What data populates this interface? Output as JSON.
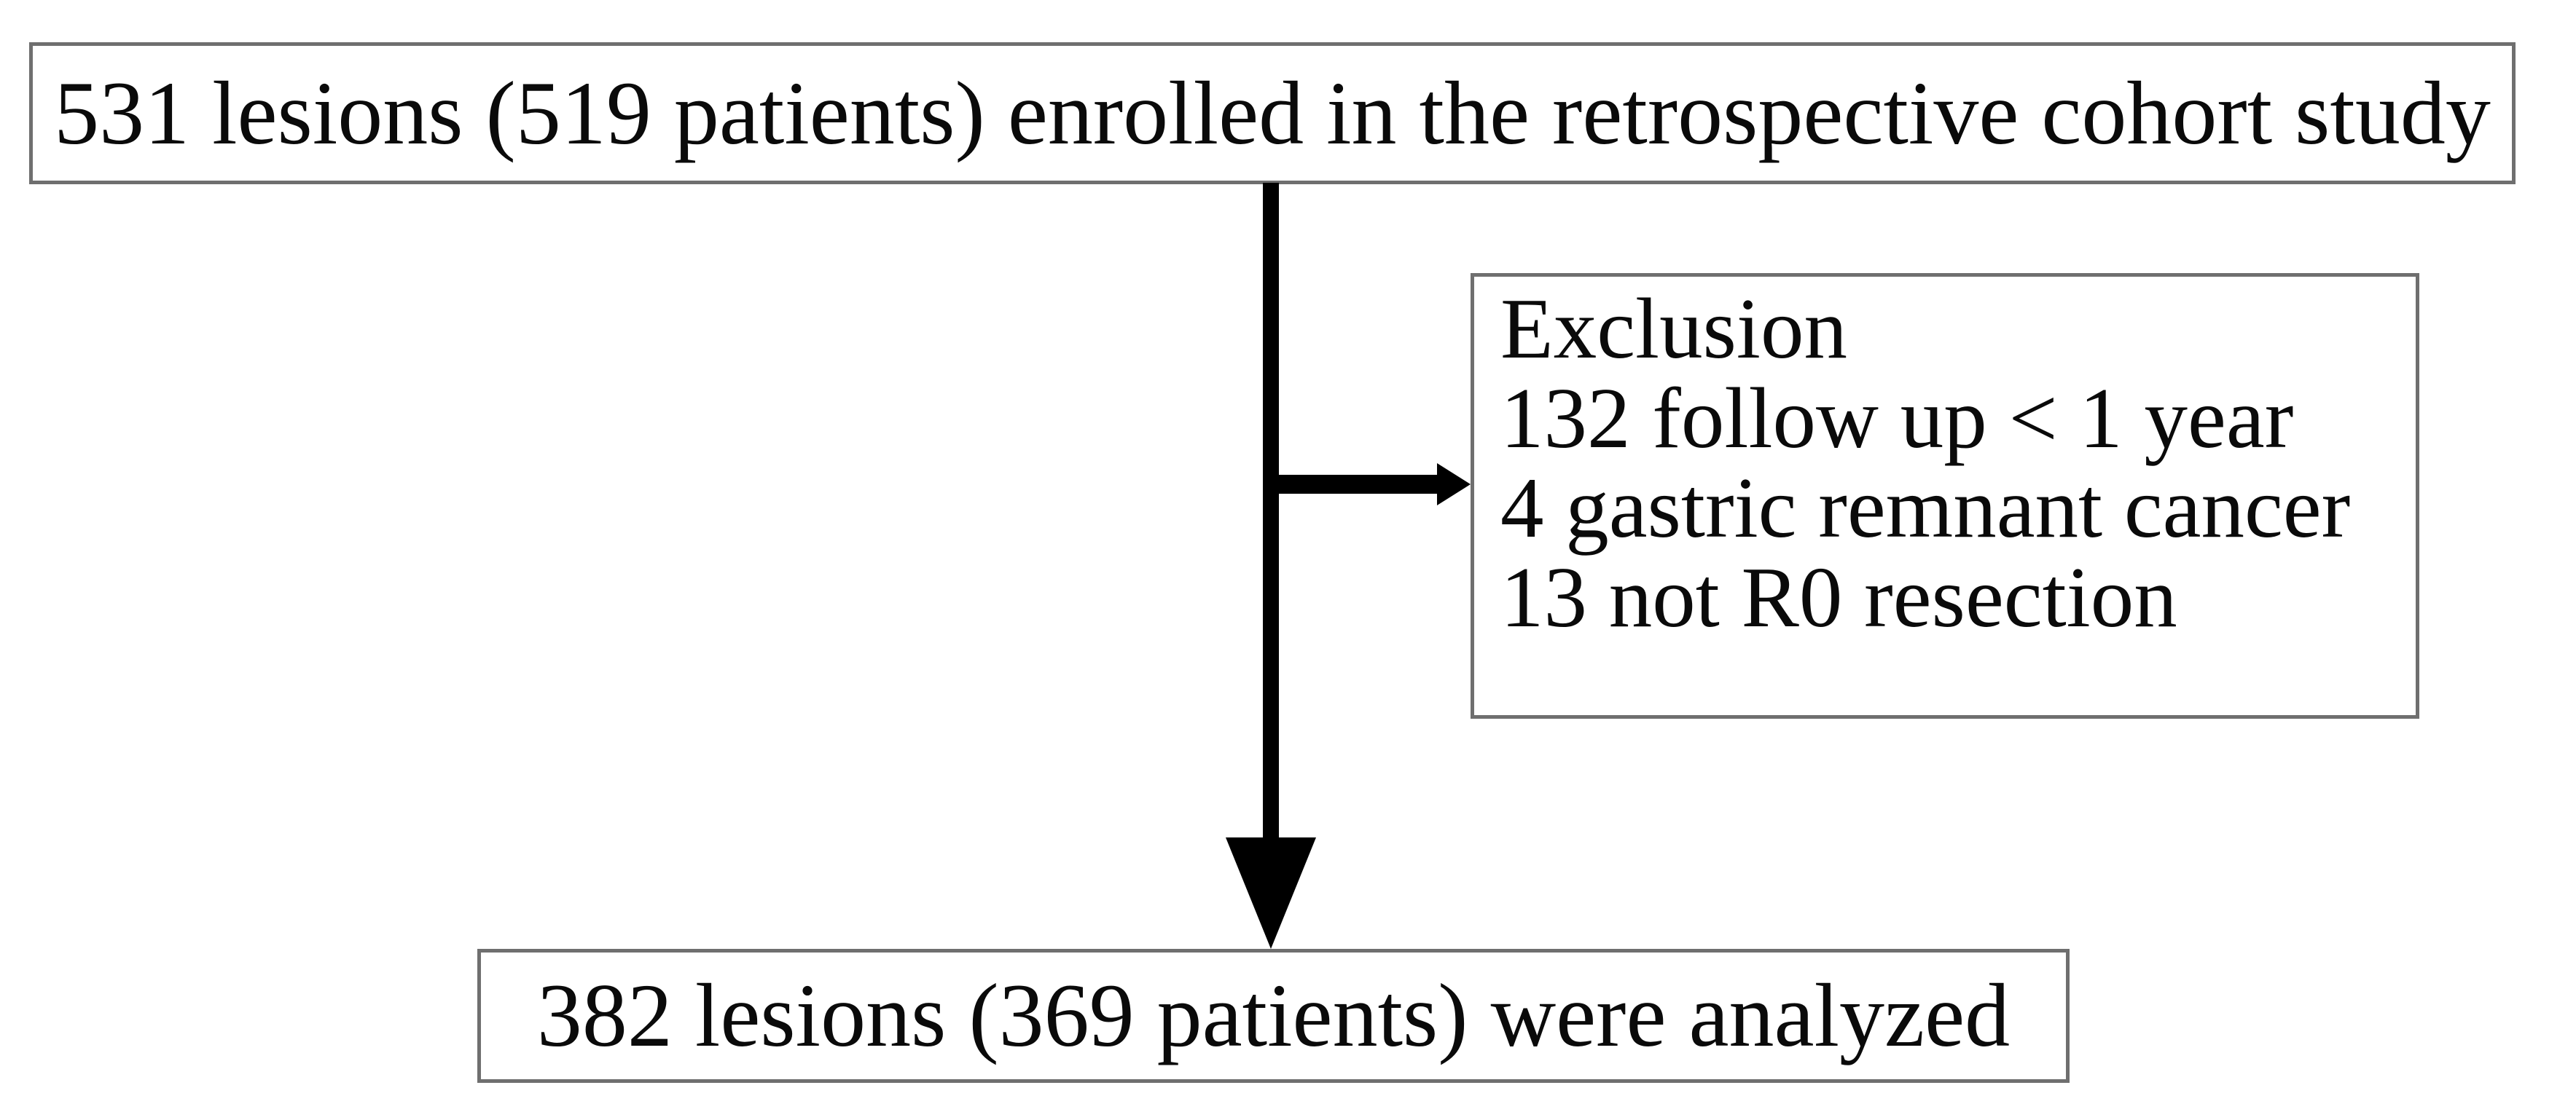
{
  "figure": {
    "type": "study-flow-diagram",
    "background_color": "#ffffff",
    "box_border_color": "#6f6f6f",
    "arrow_color": "#000000",
    "text_color": "#0a0a0a"
  },
  "nodes": {
    "enrollment": {
      "text": "531 lesions (519 patients) enrolled in the retrospective cohort study"
    },
    "exclusion": {
      "title": "Exclusion",
      "items": [
        "132 follow up < 1 year",
        "4 gastric remnant cancer",
        "13 not R0 resection"
      ]
    },
    "analyzed": {
      "text": "382 lesions (369 patients) were analyzed"
    }
  }
}
